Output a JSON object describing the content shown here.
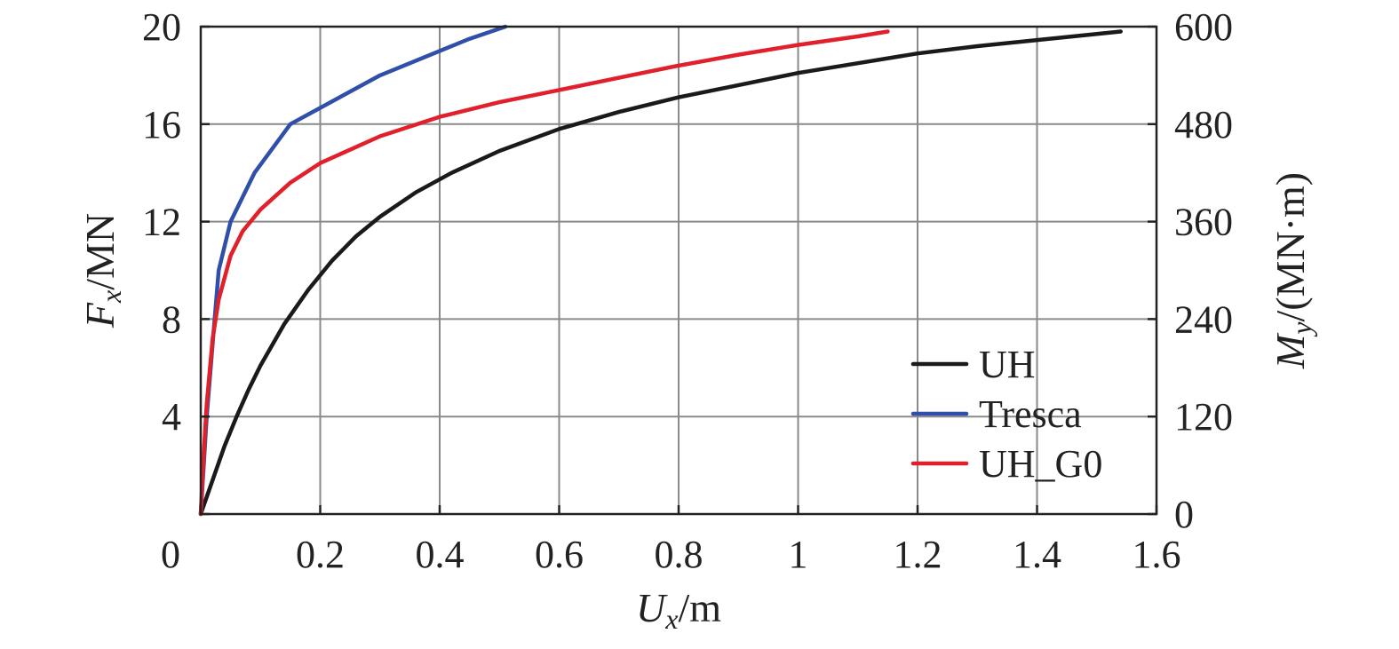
{
  "chart_data": {
    "type": "line",
    "xlabel": {
      "var": "U",
      "sub": "x",
      "unit": "/m"
    },
    "ylabel": {
      "var": "F",
      "sub": "x",
      "unit": "/MN"
    },
    "y2label": {
      "var": "M",
      "sub": "y",
      "unit": "/(MN·m)"
    },
    "xlim": [
      0,
      1.6
    ],
    "ylim": [
      0,
      20
    ],
    "y2lim": [
      0,
      600
    ],
    "x_ticks": [
      0,
      0.2,
      0.4,
      0.6,
      0.8,
      1,
      1.2,
      1.4,
      1.6
    ],
    "x_tick_labels": [
      "0",
      "0.2",
      "0.4",
      "0.6",
      "0.8",
      "1",
      "1.2",
      "1.4",
      "1.6"
    ],
    "y_ticks": [
      0,
      4,
      8,
      12,
      16,
      20
    ],
    "y_tick_labels": [
      "",
      "4",
      "8",
      "12",
      "16",
      "20"
    ],
    "y2_ticks": [
      0,
      120,
      240,
      360,
      480,
      600
    ],
    "y2_tick_labels": [
      "0",
      "120",
      "240",
      "360",
      "480",
      "600"
    ],
    "grid": true,
    "legend_position": "bottom-right",
    "series": [
      {
        "name": "UH",
        "color": "#1a1a1a",
        "x": [
          0,
          0.02,
          0.04,
          0.06,
          0.08,
          0.1,
          0.14,
          0.18,
          0.22,
          0.26,
          0.3,
          0.36,
          0.42,
          0.5,
          0.6,
          0.7,
          0.8,
          0.9,
          1.0,
          1.1,
          1.2,
          1.3,
          1.4,
          1.5,
          1.54
        ],
        "y": [
          0,
          1.4,
          2.8,
          4.0,
          5.1,
          6.1,
          7.8,
          9.2,
          10.4,
          11.4,
          12.2,
          13.2,
          14.0,
          14.9,
          15.8,
          16.5,
          17.1,
          17.6,
          18.1,
          18.5,
          18.9,
          19.2,
          19.45,
          19.7,
          19.8
        ]
      },
      {
        "name": "Tresca",
        "color": "#2f4fa8",
        "x": [
          0,
          0.01,
          0.02,
          0.03,
          0.05,
          0.09,
          0.15,
          0.3,
          0.45,
          0.51
        ],
        "y": [
          0,
          4.0,
          7.0,
          10.0,
          12.0,
          14.0,
          16.0,
          18.0,
          19.5,
          20.0
        ]
      },
      {
        "name": "UH_G0",
        "color": "#e0202a",
        "x": [
          0,
          0.005,
          0.01,
          0.02,
          0.03,
          0.05,
          0.07,
          0.1,
          0.15,
          0.2,
          0.3,
          0.4,
          0.5,
          0.6,
          0.7,
          0.8,
          0.9,
          1.0,
          1.1,
          1.15
        ],
        "y": [
          0,
          2.5,
          4.5,
          7.2,
          8.8,
          10.6,
          11.6,
          12.5,
          13.6,
          14.4,
          15.5,
          16.3,
          16.9,
          17.4,
          17.9,
          18.4,
          18.85,
          19.25,
          19.6,
          19.8
        ]
      }
    ]
  }
}
